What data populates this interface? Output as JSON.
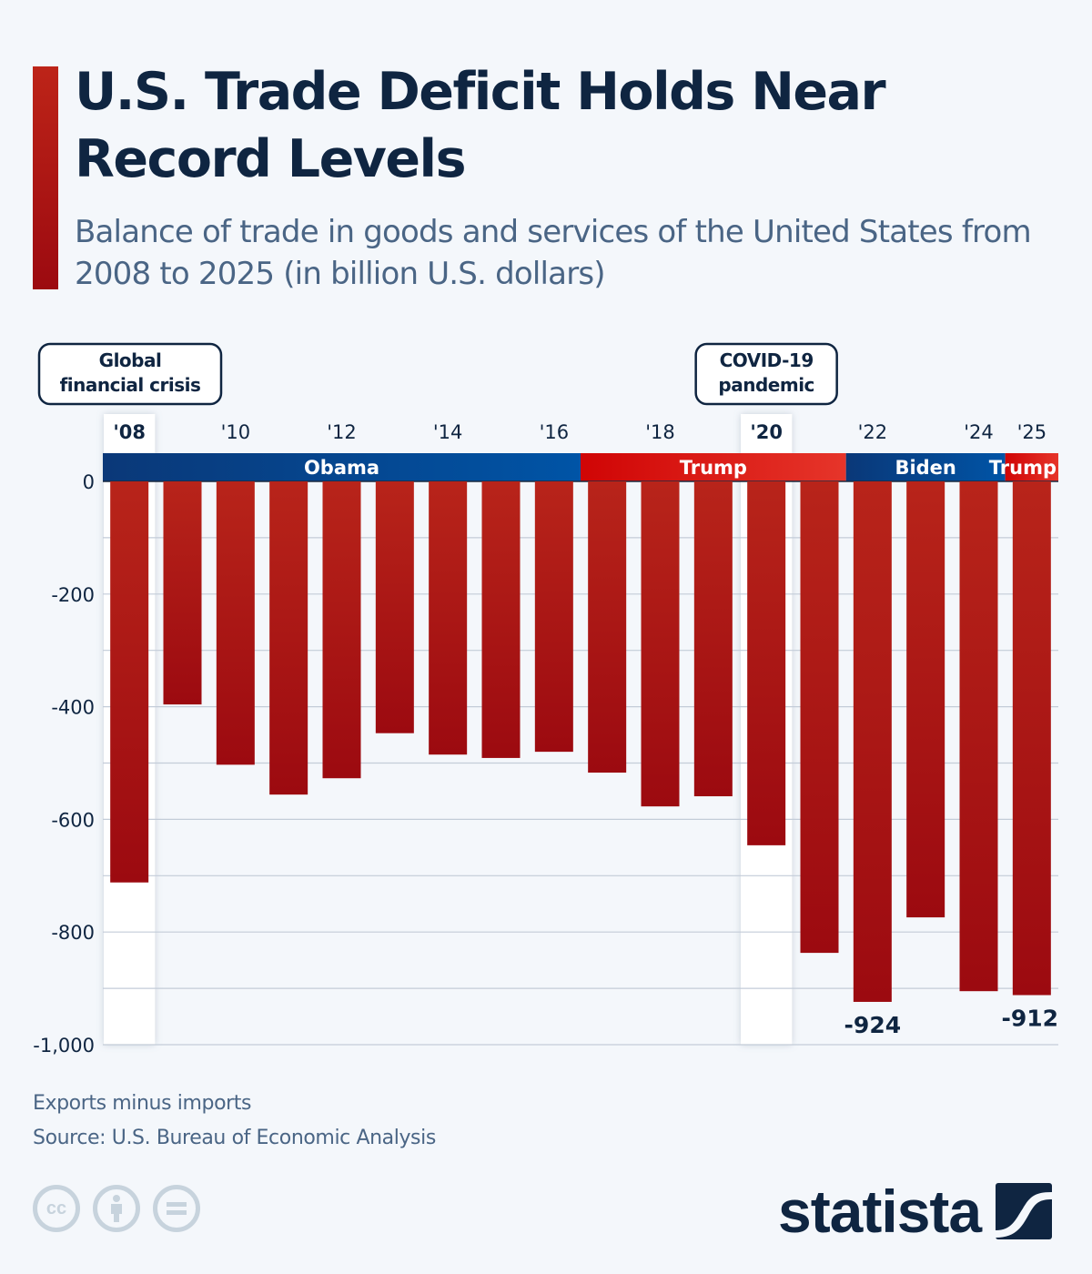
{
  "header": {
    "title": "U.S. Trade Deficit Holds Near Record Levels",
    "subtitle": "Balance of trade in goods and services of the United States from 2008 to 2025 (in billion U.S. dollars)",
    "accent_color": "#b01a14"
  },
  "chart_data": {
    "type": "bar",
    "title": "U.S. Trade Deficit Holds Near Record Levels",
    "subtitle": "Balance of trade in goods and services of the United States from 2008 to 2025 (in billion U.S. dollars)",
    "xlabel": "",
    "ylabel": "",
    "categories": [
      "2008",
      "2009",
      "2010",
      "2011",
      "2012",
      "2013",
      "2014",
      "2015",
      "2016",
      "2017",
      "2018",
      "2019",
      "2020",
      "2021",
      "2022",
      "2023",
      "2024",
      "2025"
    ],
    "tick_labels": [
      {
        "index": 0,
        "label": "'08",
        "bold": true
      },
      {
        "index": 2,
        "label": "'10",
        "bold": false
      },
      {
        "index": 4,
        "label": "'12",
        "bold": false
      },
      {
        "index": 6,
        "label": "'14",
        "bold": false
      },
      {
        "index": 8,
        "label": "'16",
        "bold": false
      },
      {
        "index": 10,
        "label": "'18",
        "bold": false
      },
      {
        "index": 12,
        "label": "'20",
        "bold": true
      },
      {
        "index": 14,
        "label": "'22",
        "bold": false
      },
      {
        "index": 16,
        "label": "'24",
        "bold": false
      },
      {
        "index": 17,
        "label": "'25",
        "bold": false
      }
    ],
    "series": [
      {
        "name": "Balance of trade",
        "color": "#b01a14",
        "values": [
          -712,
          -396,
          -503,
          -556,
          -527,
          -447,
          -485,
          -491,
          -480,
          -517,
          -577,
          -559,
          -646,
          -837,
          -924,
          -774,
          -905,
          -912
        ]
      }
    ],
    "data_labels": [
      {
        "index": 14,
        "label": "-924"
      },
      {
        "index": 17,
        "label": "-912"
      }
    ],
    "ylim": [
      -1000,
      0
    ],
    "yticks": [
      0,
      -200,
      -400,
      -600,
      -800,
      -1000
    ],
    "ytick_labels": [
      "0",
      "-200",
      "-400",
      "-600",
      "-800",
      "-1,000"
    ],
    "grid": true,
    "highlights": [
      {
        "index": 0,
        "label": "Global financial crisis"
      },
      {
        "index": 12,
        "label": "COVID-19 pandemic"
      }
    ],
    "presidencies": [
      {
        "name": "Obama",
        "from_index": 0,
        "to_index": 8,
        "party_color": "#0a3f8a"
      },
      {
        "name": "Trump",
        "from_index": 9,
        "to_index": 13,
        "party_color": "#d00a0a"
      },
      {
        "name": "Biden",
        "from_index": 14,
        "to_index": 16,
        "party_color": "#0a3f8a"
      },
      {
        "name": "Trump",
        "from_index": 17,
        "to_index": 17,
        "party_color": "#d00a0a"
      }
    ]
  },
  "footer": {
    "note": "Exports minus imports",
    "source": "Source: U.S. Bureau of Economic Analysis",
    "license_icons": [
      "cc-icon",
      "attribution-icon",
      "no-derivatives-icon"
    ],
    "logo_text": "statista"
  }
}
